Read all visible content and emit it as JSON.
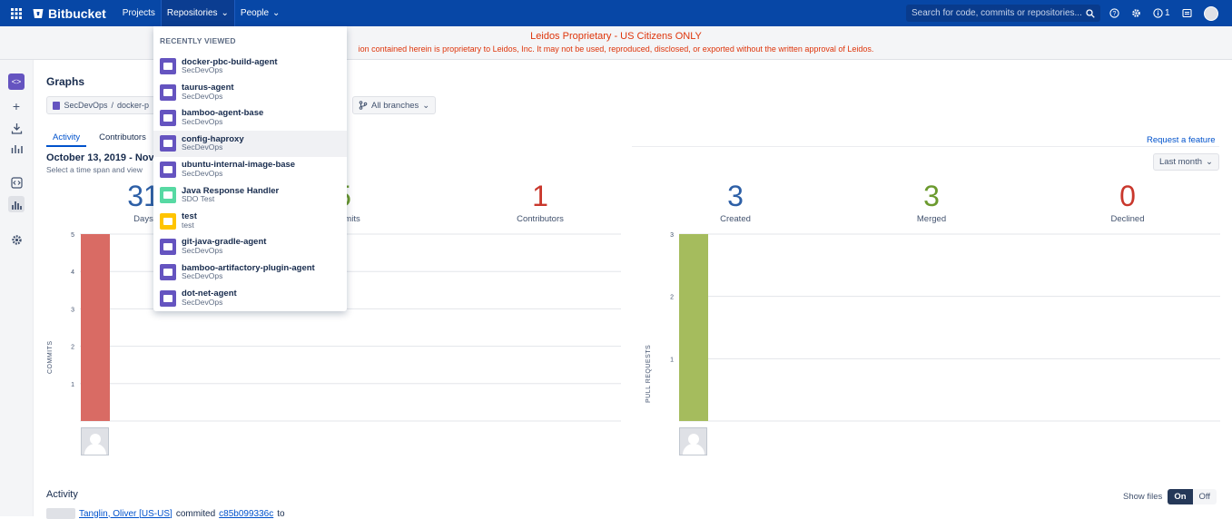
{
  "topbar": {
    "brand": "Bitbucket",
    "nav": {
      "projects": "Projects",
      "repositories": "Repositories",
      "people": "People"
    },
    "search_placeholder": "Search for code, commits or repositories...",
    "notification_count": "1"
  },
  "banner": {
    "title": "Leidos Proprietary - US Citizens ONLY",
    "text": "ion contained herein is proprietary to Leidos, Inc. It may not be used, reproduced, disclosed, or exported without the written approval of Leidos."
  },
  "page": {
    "title": "Graphs",
    "breadcrumb_project": "SecDevOps",
    "breadcrumb_sep": "/",
    "breadcrumb_repo": "docker-p",
    "branch_filter": "All branches",
    "tabs": [
      "Activity",
      "Contributors"
    ],
    "request_feature": "Request a feature",
    "date_range": "October 13, 2019 - Nov",
    "date_desc": "Select a time span and view",
    "timespan": "Last month"
  },
  "stats_left": [
    {
      "value": "31",
      "label": "Days",
      "color": "#2d5fa6"
    },
    {
      "value": "5",
      "label": "Commits",
      "color": "#6b9a2e"
    },
    {
      "value": "1",
      "label": "Contributors",
      "color": "#c9372c"
    }
  ],
  "stats_right": [
    {
      "value": "3",
      "label": "Created",
      "color": "#2d5fa6"
    },
    {
      "value": "3",
      "label": "Merged",
      "color": "#6b9a2e"
    },
    {
      "value": "0",
      "label": "Declined",
      "color": "#c9372c"
    }
  ],
  "chart_data": [
    {
      "type": "bar",
      "ylabel": "COMMITS",
      "categories": [
        ""
      ],
      "values": [
        5
      ],
      "ylim": [
        0,
        5
      ],
      "yticks": [
        "1",
        "2",
        "3",
        "4",
        "5"
      ],
      "color": "#d96b64"
    },
    {
      "type": "bar",
      "ylabel": "PULL REQUESTS",
      "categories": [
        ""
      ],
      "values": [
        3
      ],
      "ylim": [
        0,
        3
      ],
      "yticks": [
        "1",
        "2",
        "3"
      ],
      "color": "#a5bc5d"
    }
  ],
  "activity": {
    "title": "Activity",
    "show_files": "Show files",
    "on": "On",
    "off": "Off",
    "author": "Tanglin, Oliver [US-US]",
    "verb": "commited",
    "hash": "c85b099336c",
    "to": "to"
  },
  "dropdown": {
    "header": "RECENTLY VIEWED",
    "items": [
      {
        "name": "docker-pbc-build-agent",
        "project": "SecDevOps",
        "color": "#6554c0"
      },
      {
        "name": "taurus-agent",
        "project": "SecDevOps",
        "color": "#6554c0"
      },
      {
        "name": "bamboo-agent-base",
        "project": "SecDevOps",
        "color": "#6554c0"
      },
      {
        "name": "config-haproxy",
        "project": "SecDevOps",
        "color": "#6554c0"
      },
      {
        "name": "ubuntu-internal-image-base",
        "project": "SecDevOps",
        "color": "#6554c0"
      },
      {
        "name": "Java Response Handler",
        "project": "SDO Test",
        "color": "#57d9a3"
      },
      {
        "name": "test",
        "project": "test",
        "color": "#ffc400"
      },
      {
        "name": "git-java-gradle-agent",
        "project": "SecDevOps",
        "color": "#6554c0"
      },
      {
        "name": "bamboo-artifactory-plugin-agent",
        "project": "SecDevOps",
        "color": "#6554c0"
      },
      {
        "name": "dot-net-agent",
        "project": "SecDevOps",
        "color": "#6554c0"
      }
    ]
  }
}
